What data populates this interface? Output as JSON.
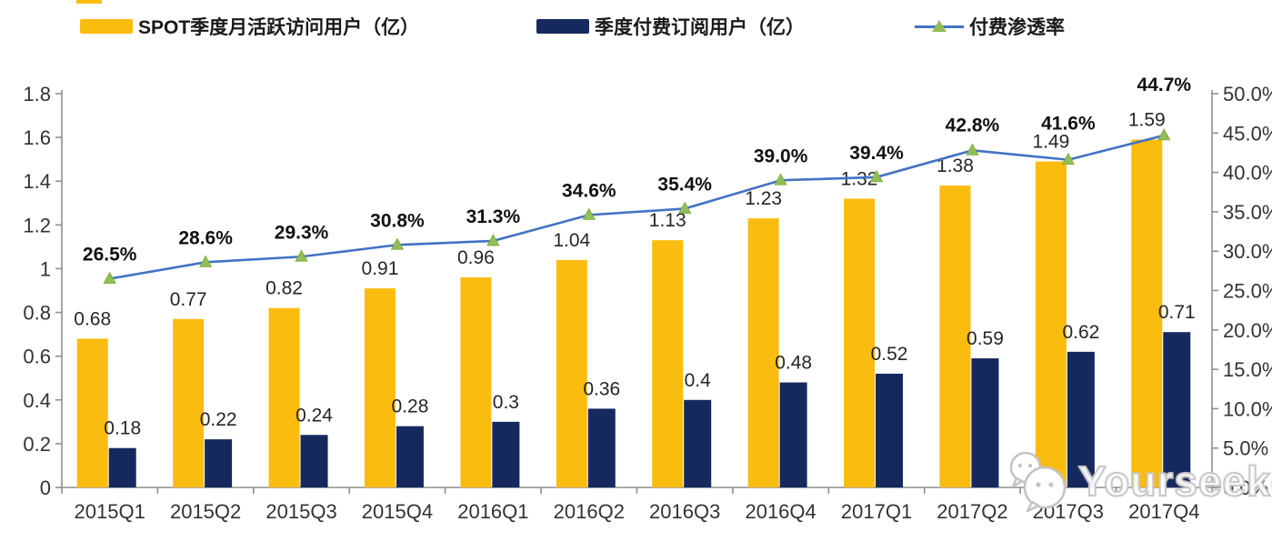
{
  "legend": {
    "mau": {
      "label": "SPOT季度月活跃访问用户（亿）",
      "color": "#FBBC10"
    },
    "subs": {
      "label": "季度付费订阅用户（亿）",
      "color": "#16295F"
    },
    "penetration": {
      "label": "付费渗透率",
      "line_color": "#4472C4",
      "marker_color": "#92BE56",
      "marker": "triangle"
    }
  },
  "watermark": {
    "text": "Yourseeker",
    "icon": "wechat-icon"
  },
  "colors": {
    "bar_mau": "#FBBC10",
    "bar_subs": "#16295F",
    "line": "#4472C4",
    "marker": "#92BE56",
    "axis": "#8F8F8F",
    "value_label": "#262626",
    "pct_label": "#111111",
    "tick_label": "#333333"
  },
  "chart_data": {
    "type": "bar",
    "subtype": "combo-bar-line-dual-axis",
    "grid": false,
    "legend_position": "top",
    "categories": [
      "2015Q1",
      "2015Q2",
      "2015Q3",
      "2015Q4",
      "2016Q1",
      "2016Q2",
      "2016Q3",
      "2016Q4",
      "2017Q1",
      "2017Q2",
      "2017Q3",
      "2017Q4"
    ],
    "series": [
      {
        "name": "SPOT季度月活跃访问用户（亿）",
        "chart_type": "bar",
        "axis": "left",
        "color": "#FBBC10",
        "values": [
          0.68,
          0.77,
          0.82,
          0.91,
          0.96,
          1.04,
          1.13,
          1.23,
          1.32,
          1.38,
          1.49,
          1.59
        ],
        "labels": [
          "0.68",
          "0.77",
          "0.82",
          "0.91",
          "0.96",
          "1.04",
          "1.13",
          "1.23",
          "1.32",
          "1.38",
          "1.49",
          "1.59"
        ]
      },
      {
        "name": "季度付费订阅用户（亿）",
        "chart_type": "bar",
        "axis": "left",
        "color": "#16295F",
        "values": [
          0.18,
          0.22,
          0.24,
          0.28,
          0.3,
          0.36,
          0.4,
          0.48,
          0.52,
          0.59,
          0.62,
          0.71
        ],
        "labels": [
          "0.18",
          "0.22",
          "0.24",
          "0.28",
          "0.3",
          "0.36",
          "0.4",
          "0.48",
          "0.52",
          "0.59",
          "0.62",
          "0.71"
        ]
      },
      {
        "name": "付费渗透率",
        "chart_type": "line",
        "axis": "right",
        "color": "#4472C4",
        "marker": "triangle",
        "marker_color": "#92BE56",
        "values": [
          26.5,
          28.6,
          29.3,
          30.8,
          31.3,
          34.6,
          35.4,
          39.0,
          39.4,
          42.8,
          41.6,
          44.7
        ],
        "labels": [
          "26.5%",
          "28.6%",
          "29.3%",
          "30.8%",
          "31.3%",
          "34.6%",
          "35.4%",
          "39.0%",
          "39.4%",
          "42.8%",
          "41.6%",
          "44.7%"
        ]
      }
    ],
    "left_axis": {
      "min": 0,
      "max": 1.8,
      "step": 0.2,
      "tick_labels": [
        "0",
        "0.2",
        "0.4",
        "0.6",
        "0.8",
        "1",
        "1.2",
        "1.4",
        "1.6",
        "1.8"
      ]
    },
    "right_axis": {
      "min": 0,
      "max": 50,
      "step": 5,
      "tick_labels": [
        "0.0%",
        "5.0%",
        "10.0%",
        "15.0%",
        "20.0%",
        "25.0%",
        "30.0%",
        "35.0%",
        "40.0%",
        "45.0%",
        "50.0%"
      ]
    }
  }
}
